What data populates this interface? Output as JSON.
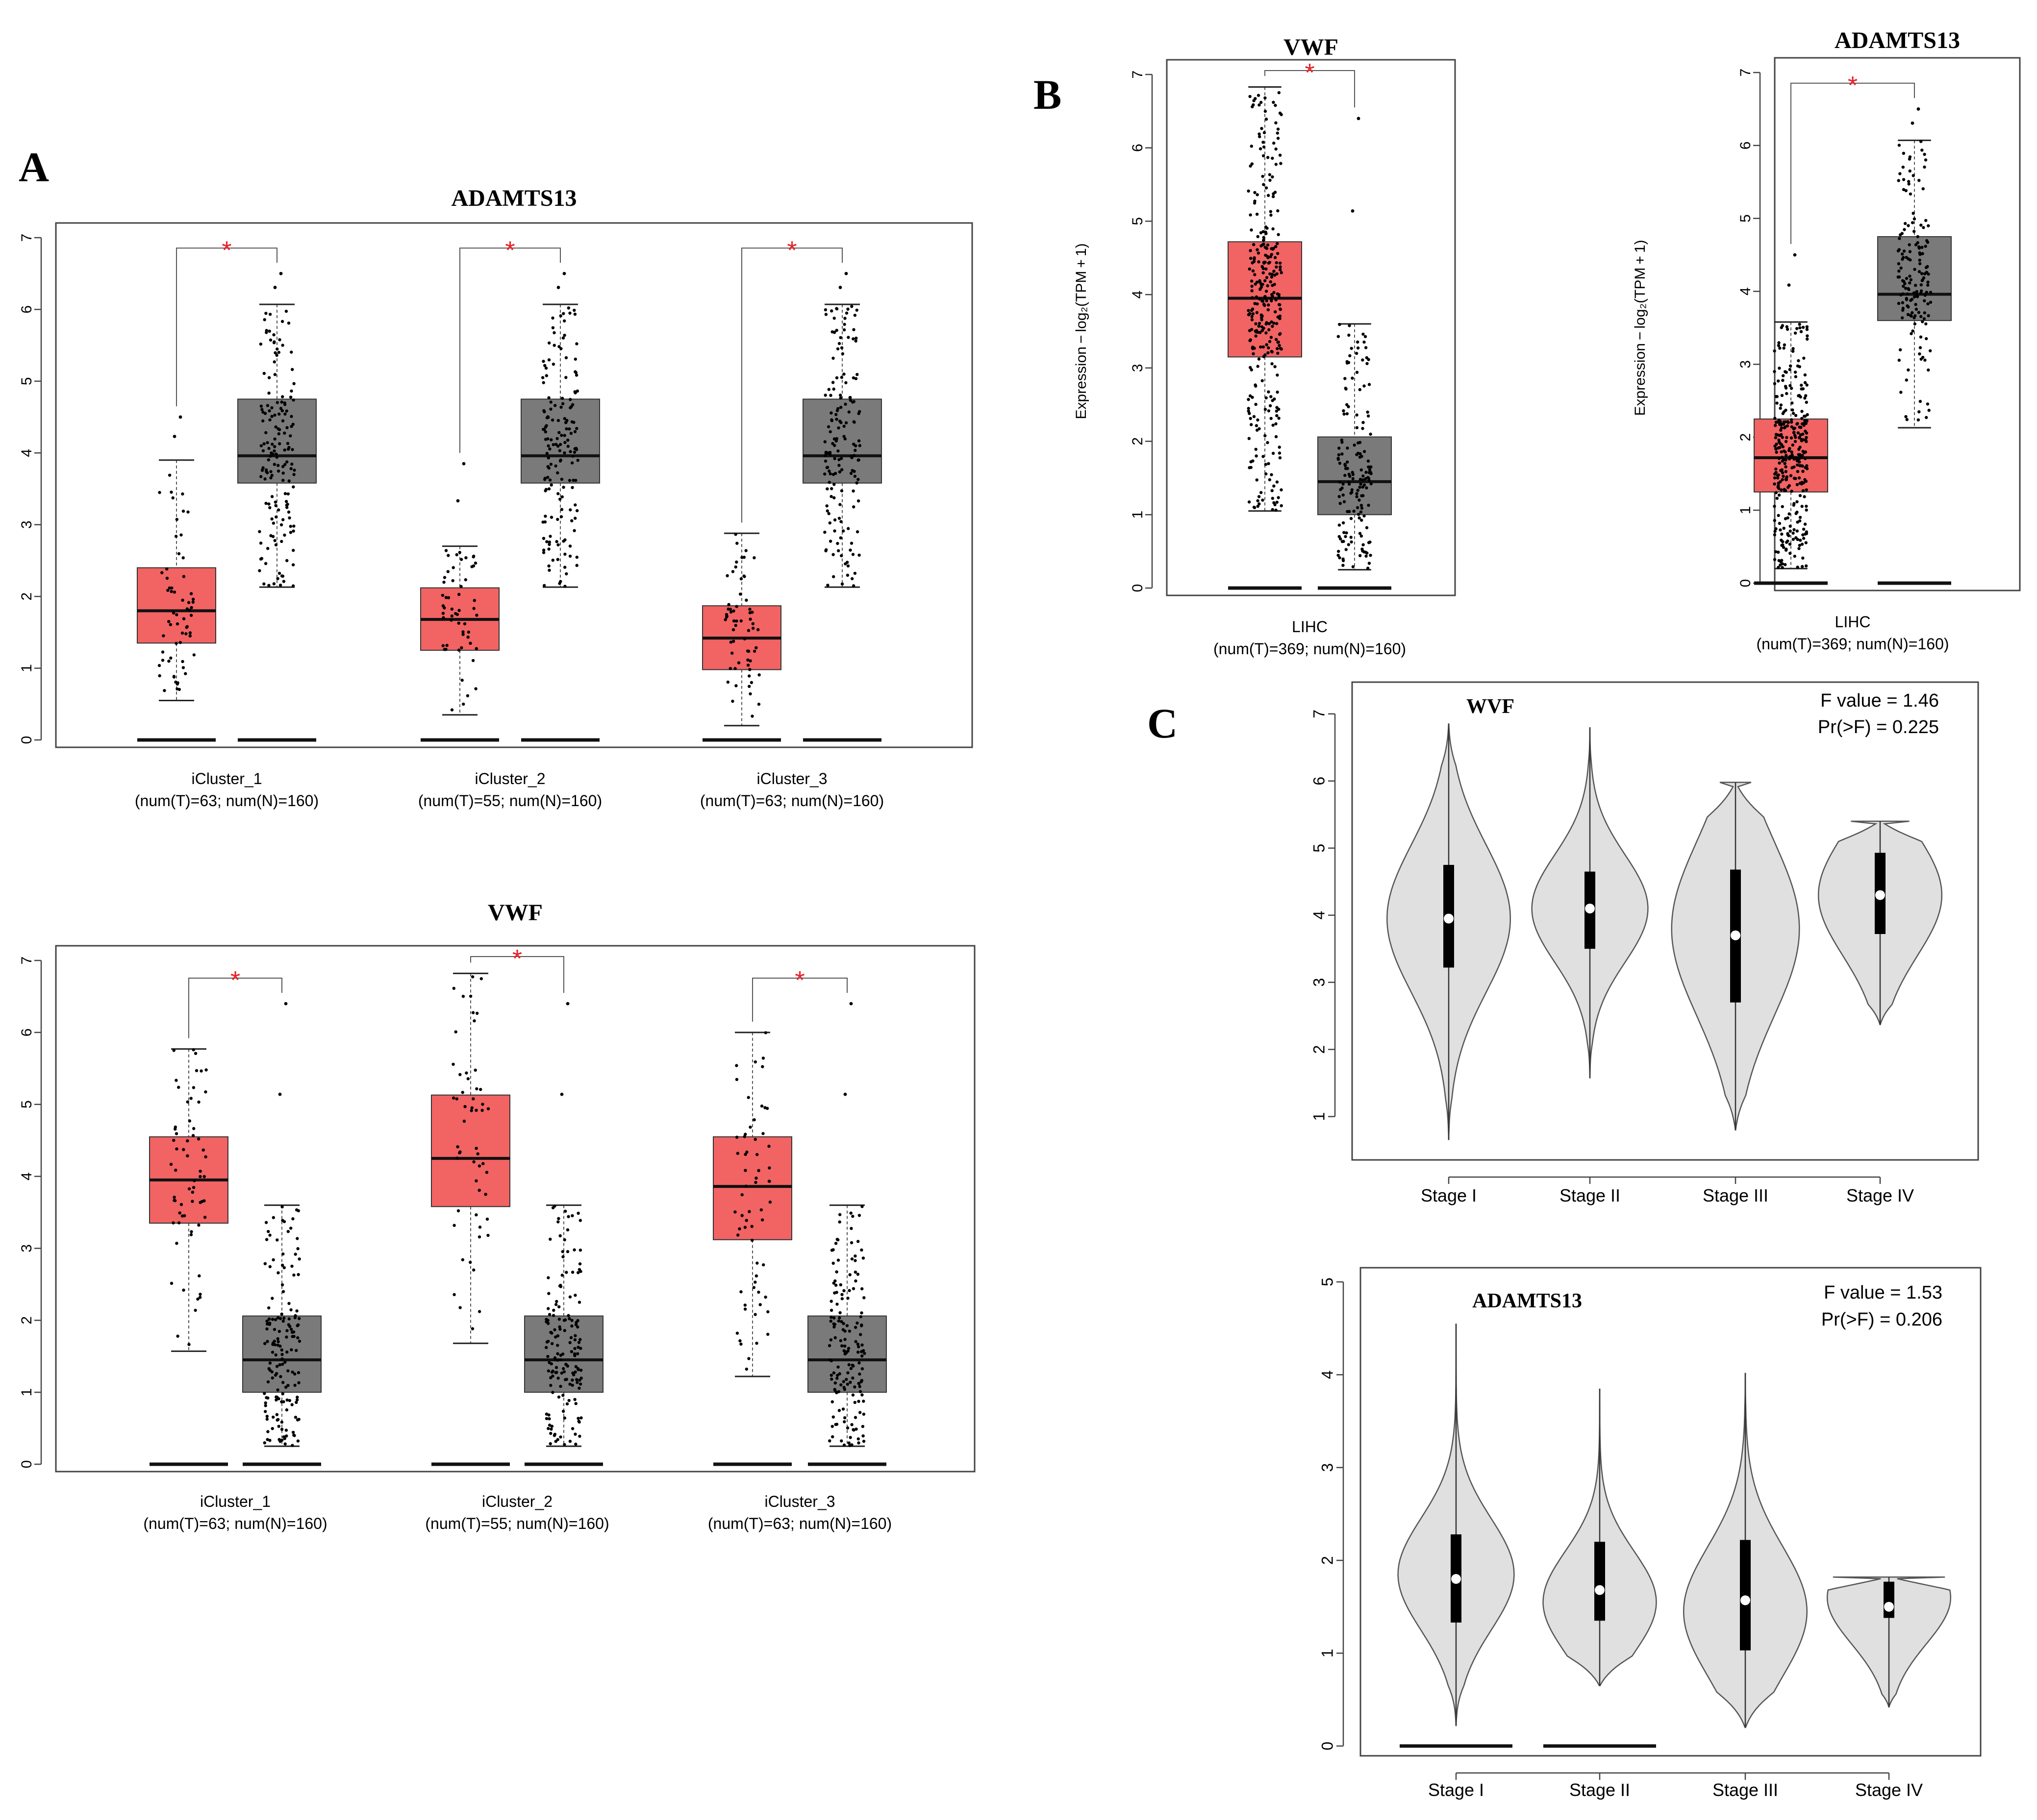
{
  "figure": {
    "panel_labels": [
      "A",
      "B",
      "C"
    ]
  },
  "colors": {
    "tumor": "#f26363",
    "normal": "#7a7a7a",
    "violin": "#e0e0e0",
    "asterisk": "#e8222a",
    "text": "#000000",
    "axis": "#444444"
  },
  "chart_data": [
    {
      "id": "A1",
      "panel": "A",
      "type": "box",
      "title": "ADAMTS13",
      "ylim": [
        0,
        7
      ],
      "yticks": [
        0,
        1,
        2,
        3,
        4,
        5,
        6,
        7
      ],
      "categories": [
        {
          "label": "iCluster_1",
          "sublabel": "(num(T)=63; num(N)=160)"
        },
        {
          "label": "iCluster_2",
          "sublabel": "(num(T)=55; num(N)=160)"
        },
        {
          "label": "iCluster_3",
          "sublabel": "(num(T)=63; num(N)=160)"
        }
      ],
      "series": [
        {
          "name": "Tumor",
          "boxes": [
            {
              "lw": 0.55,
              "q1": 1.35,
              "med": 1.8,
              "q3": 2.4,
              "uw": 3.9,
              "n": 63,
              "max_out": 4.5
            },
            {
              "lw": 0.35,
              "q1": 1.25,
              "med": 1.68,
              "q3": 2.12,
              "uw": 2.7,
              "n": 55,
              "max_out": 3.85
            },
            {
              "lw": 0.2,
              "q1": 0.98,
              "med": 1.42,
              "q3": 1.87,
              "uw": 2.88,
              "n": 63,
              "max_out": 2.88
            }
          ]
        },
        {
          "name": "Normal",
          "boxes": [
            {
              "lw": 2.13,
              "q1": 3.58,
              "med": 3.96,
              "q3": 4.75,
              "uw": 6.07,
              "n": 160,
              "max_out": 6.5
            },
            {
              "lw": 2.13,
              "q1": 3.58,
              "med": 3.96,
              "q3": 4.75,
              "uw": 6.07,
              "n": 160,
              "max_out": 6.5
            },
            {
              "lw": 2.13,
              "q1": 3.58,
              "med": 3.96,
              "q3": 4.75,
              "uw": 6.07,
              "n": 160,
              "max_out": 6.5
            }
          ]
        }
      ],
      "significance": "*"
    },
    {
      "id": "A2",
      "panel": "A",
      "type": "box",
      "title": "VWF",
      "ylim": [
        0,
        7
      ],
      "yticks": [
        0,
        1,
        2,
        3,
        4,
        5,
        6,
        7
      ],
      "categories": [
        {
          "label": "iCluster_1",
          "sublabel": "(num(T)=63; num(N)=160)"
        },
        {
          "label": "iCluster_2",
          "sublabel": "(num(T)=55; num(N)=160)"
        },
        {
          "label": "iCluster_3",
          "sublabel": "(num(T)=63; num(N)=160)"
        }
      ],
      "series": [
        {
          "name": "Tumor",
          "boxes": [
            {
              "lw": 1.57,
              "q1": 3.35,
              "med": 3.95,
              "q3": 4.55,
              "uw": 5.77,
              "n": 63,
              "max_out": 5.77
            },
            {
              "lw": 1.68,
              "q1": 3.58,
              "med": 4.25,
              "q3": 5.13,
              "uw": 6.82,
              "n": 55,
              "max_out": 6.82
            },
            {
              "lw": 1.22,
              "q1": 3.12,
              "med": 3.86,
              "q3": 4.55,
              "uw": 6.0,
              "n": 63,
              "max_out": 6.0
            }
          ]
        },
        {
          "name": "Normal",
          "boxes": [
            {
              "lw": 0.25,
              "q1": 1.0,
              "med": 1.45,
              "q3": 2.06,
              "uw": 3.6,
              "n": 160,
              "max_out": 6.4
            },
            {
              "lw": 0.25,
              "q1": 1.0,
              "med": 1.45,
              "q3": 2.06,
              "uw": 3.6,
              "n": 160,
              "max_out": 6.4
            },
            {
              "lw": 0.25,
              "q1": 1.0,
              "med": 1.45,
              "q3": 2.06,
              "uw": 3.6,
              "n": 160,
              "max_out": 6.4
            }
          ]
        }
      ],
      "significance": "*"
    },
    {
      "id": "B1",
      "panel": "B",
      "type": "box",
      "title": "VWF",
      "ylabel_html": "Expression − log₂(TPM + 1)",
      "ylim": [
        0,
        7
      ],
      "yticks": [
        0,
        1,
        2,
        3,
        4,
        5,
        6,
        7
      ],
      "categories": [
        {
          "label": "LIHC",
          "sublabel": "(num(T)=369; num(N)=160)"
        }
      ],
      "series": [
        {
          "name": "Tumor",
          "boxes": [
            {
              "lw": 1.05,
              "q1": 3.15,
              "med": 3.95,
              "q3": 4.72,
              "uw": 6.83,
              "n": 369,
              "max_out": 6.83
            }
          ]
        },
        {
          "name": "Normal",
          "boxes": [
            {
              "lw": 0.25,
              "q1": 1.0,
              "med": 1.45,
              "q3": 2.06,
              "uw": 3.6,
              "n": 160,
              "max_out": 6.4
            }
          ]
        }
      ],
      "significance": "*"
    },
    {
      "id": "B2",
      "panel": "B",
      "type": "box",
      "title": "ADAMTS13",
      "ylabel_html": "Expression − log₂(TPM + 1)",
      "ylim": [
        0,
        7
      ],
      "yticks": [
        0,
        1,
        2,
        3,
        4,
        5,
        6,
        7
      ],
      "categories": [
        {
          "label": "LIHC",
          "sublabel": "(num(T)=369; num(N)=160)"
        }
      ],
      "series": [
        {
          "name": "Tumor",
          "boxes": [
            {
              "lw": 0.2,
              "q1": 1.25,
              "med": 1.72,
              "q3": 2.25,
              "uw": 3.58,
              "n": 369,
              "max_out": 4.5
            }
          ]
        },
        {
          "name": "Normal",
          "boxes": [
            {
              "lw": 2.13,
              "q1": 3.6,
              "med": 3.96,
              "q3": 4.75,
              "uw": 6.07,
              "n": 160,
              "max_out": 6.5
            }
          ]
        }
      ],
      "significance": "*"
    },
    {
      "id": "C1",
      "panel": "C",
      "type": "violin",
      "title": "WVF",
      "stat1": "F value = 1.46",
      "stat2": "Pr(>F) = 0.225",
      "ylim": [
        0.5,
        7.4
      ],
      "yticks": [
        1,
        2,
        3,
        4,
        5,
        6,
        7
      ],
      "categories": [
        "Stage I",
        "Stage II",
        "Stage III",
        "Stage IV"
      ],
      "violins": [
        {
          "min": 0.65,
          "max": 6.85,
          "q1": 3.22,
          "med": 3.95,
          "q3": 4.75,
          "maxw": 0.85,
          "mode": 3.95,
          "sd": 1.1,
          "flat_top": false
        },
        {
          "min": 1.57,
          "max": 6.8,
          "q1": 3.5,
          "med": 4.1,
          "q3": 4.65,
          "maxw": 0.8,
          "mode": 4.1,
          "sd": 0.8,
          "flat_top": false
        },
        {
          "min": 0.8,
          "max": 5.98,
          "q1": 2.7,
          "med": 3.7,
          "q3": 4.68,
          "maxw": 0.88,
          "mode": 3.8,
          "sd": 1.3,
          "flat_top": true
        },
        {
          "min": 2.37,
          "max": 5.4,
          "q1": 3.72,
          "med": 4.3,
          "q3": 4.93,
          "maxw": 0.85,
          "mode": 4.3,
          "sd": 0.9,
          "flat_top": true
        }
      ]
    },
    {
      "id": "C2",
      "panel": "C",
      "type": "violin",
      "title": "ADAMTS13",
      "stat1": "F value = 1.53",
      "stat2": "Pr(>F) = 0.206",
      "ylim": [
        0,
        5.1
      ],
      "yticks": [
        0,
        1,
        2,
        3,
        4,
        5
      ],
      "categories": [
        "Stage I",
        "Stage II",
        "Stage III",
        "Stage IV"
      ],
      "violins": [
        {
          "min": 0.22,
          "max": 4.55,
          "q1": 1.33,
          "med": 1.8,
          "q3": 2.28,
          "maxw": 0.8,
          "mode": 1.85,
          "sd": 0.6,
          "flat_top": false,
          "zero_bar": true
        },
        {
          "min": 0.65,
          "max": 3.85,
          "q1": 1.35,
          "med": 1.68,
          "q3": 2.2,
          "maxw": 0.78,
          "mode": 1.55,
          "sd": 0.55,
          "flat_top": false,
          "zero_bar": true
        },
        {
          "min": 0.2,
          "max": 4.02,
          "q1": 1.03,
          "med": 1.57,
          "q3": 2.22,
          "maxw": 0.85,
          "mode": 1.45,
          "sd": 0.7,
          "flat_top": false
        },
        {
          "min": 0.42,
          "max": 1.82,
          "q1": 1.38,
          "med": 1.5,
          "q3": 1.77,
          "maxw": 0.85,
          "mode": 1.6,
          "sd": 0.5,
          "flat_top": true
        }
      ]
    }
  ]
}
